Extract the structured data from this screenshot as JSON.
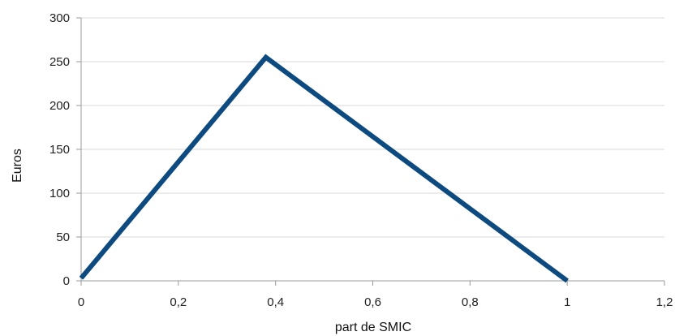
{
  "chart_data": {
    "type": "line",
    "title": "",
    "xlabel": "part de SMIC",
    "ylabel": "Euros",
    "xlim": [
      0,
      1.2
    ],
    "ylim": [
      0,
      300
    ],
    "x_ticks": [
      "0",
      "0,2",
      "0,4",
      "0,6",
      "0,8",
      "1",
      "1,2"
    ],
    "y_ticks": [
      "0",
      "50",
      "100",
      "150",
      "200",
      "250",
      "300"
    ],
    "grid": "horizontal",
    "legend": "none",
    "series": [
      {
        "color": "#0d4a80",
        "points": [
          {
            "x": 0,
            "y": 3
          },
          {
            "x": 0.38,
            "y": 255
          },
          {
            "x": 1,
            "y": 0
          }
        ]
      }
    ]
  }
}
